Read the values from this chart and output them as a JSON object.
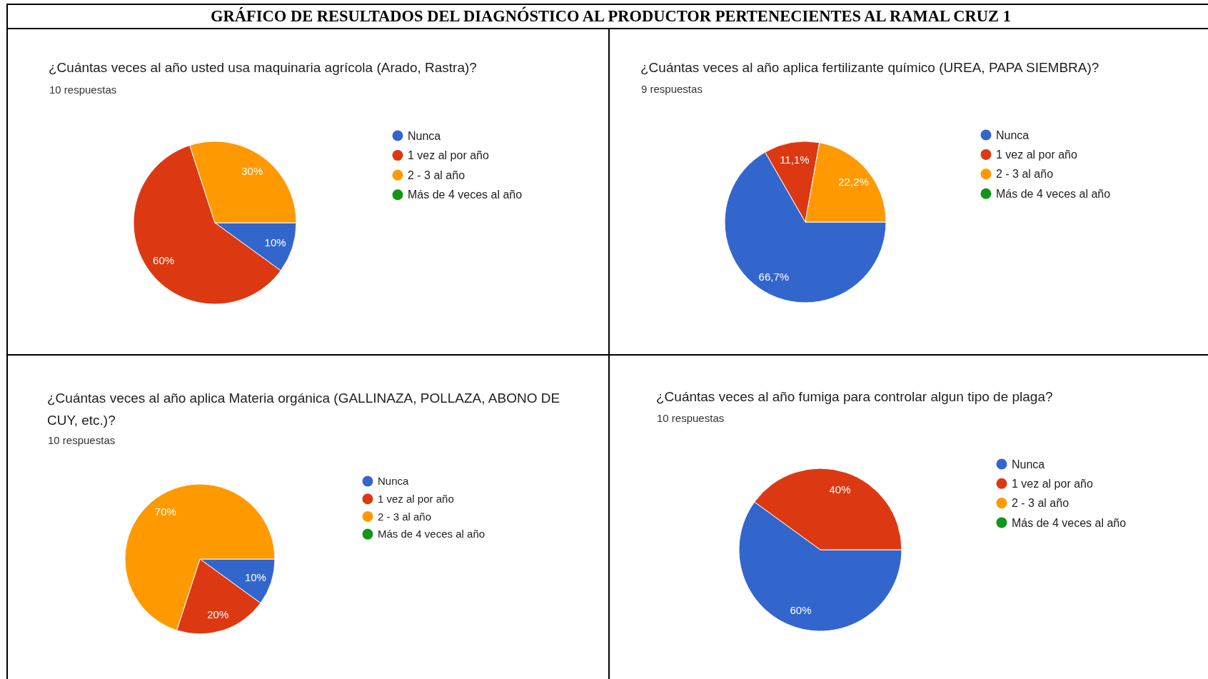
{
  "chart_data": [
    {
      "type": "other",
      "title": "GRÁFICO DE RESULTADOS DEL DIAGNÓSTICO AL PRODUCTOR PERTENECIENTES AL RAMAL CRUZ 1"
    },
    {
      "type": "pie",
      "title": "¿Cuántas veces al año usted usa maquinaria agrícola (Arado, Rastra)?",
      "subtitle": "10 respuestas",
      "categories": [
        "Nunca",
        "1 vez al por año",
        "2 - 3 al año",
        "Más de 4 veces al año"
      ],
      "values": [
        10,
        60,
        30,
        0
      ],
      "colors": [
        "#3366cc",
        "#dc3912",
        "#ff9900",
        "#109618"
      ],
      "value_labels": [
        "10%",
        "60%",
        "30%",
        null
      ],
      "legend": "right"
    },
    {
      "type": "pie",
      "title": "¿Cuántas veces al año aplica fertilizante químico (UREA, PAPA SIEMBRA)?",
      "subtitle": "9 respuestas",
      "categories": [
        "Nunca",
        "1 vez al por año",
        "2 - 3 al año",
        "Más de 4 veces al año"
      ],
      "values": [
        66.7,
        11.1,
        22.2,
        0
      ],
      "colors": [
        "#3366cc",
        "#dc3912",
        "#ff9900",
        "#109618"
      ],
      "value_labels": [
        "66,7%",
        "11,1%",
        "22,2%",
        null
      ],
      "legend": "right"
    },
    {
      "type": "pie",
      "title": "¿Cuántas veces al año aplica Materia orgánica (GALLINAZA, POLLAZA, ABONO DE CUY, etc.)?",
      "subtitle": "10 respuestas",
      "categories": [
        "Nunca",
        "1 vez al por año",
        "2 - 3 al año",
        "Más de 4 veces al año"
      ],
      "values": [
        10,
        20,
        70,
        0
      ],
      "colors": [
        "#3366cc",
        "#dc3912",
        "#ff9900",
        "#109618"
      ],
      "value_labels": [
        "10%",
        "20%",
        "70%",
        null
      ],
      "legend": "right"
    },
    {
      "type": "pie",
      "title": "¿Cuántas veces al año fumiga para controlar algun tipo de plaga?",
      "subtitle": "10 respuestas",
      "categories": [
        "Nunca",
        "1 vez al por año",
        "2 - 3 al año",
        "Más de 4 veces al año"
      ],
      "values": [
        60,
        40,
        0,
        0
      ],
      "colors": [
        "#3366cc",
        "#dc3912",
        "#ff9900",
        "#109618"
      ],
      "value_labels": [
        "60%",
        "40%",
        null,
        null
      ],
      "legend": "right"
    }
  ]
}
